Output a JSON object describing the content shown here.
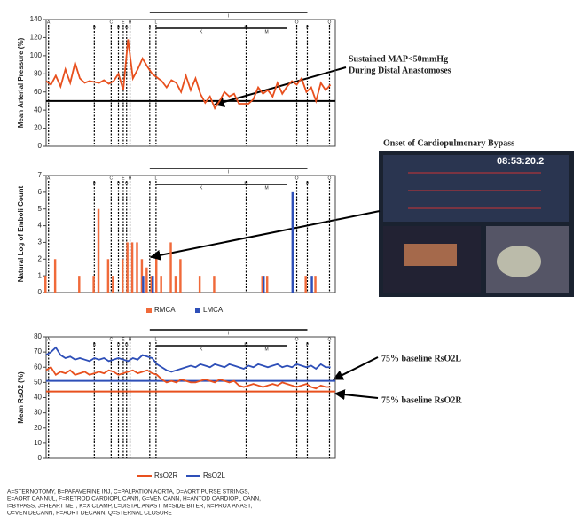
{
  "chart_data": [
    {
      "type": "line",
      "ylabel": "Mean Arterial Pressure (%)",
      "xlim": [
        0,
        60
      ],
      "ylim": [
        0,
        140
      ],
      "yticks": [
        0,
        20,
        40,
        60,
        80,
        100,
        120,
        140
      ],
      "series": [
        {
          "color": "#e8501e",
          "values": [
            72,
            68,
            78,
            66,
            85,
            70,
            92,
            75,
            70,
            72,
            71,
            70,
            73,
            69,
            72,
            80,
            62,
            118,
            75,
            85,
            97,
            88,
            80,
            76,
            72,
            65,
            73,
            70,
            60,
            78,
            62,
            75,
            58,
            48,
            55,
            42,
            50,
            60,
            55,
            58,
            47,
            47,
            47,
            52,
            65,
            58,
            62,
            55,
            70,
            58,
            66,
            72,
            68,
            75,
            60,
            65,
            50,
            70,
            62,
            68
          ]
        }
      ],
      "hlines": [
        {
          "value": 50,
          "color": "#000"
        }
      ],
      "annotation": [
        "Sustained MAP<50mmHg",
        "During Distal Anastomoses"
      ],
      "events": [
        {
          "label": "A",
          "x": 0.5
        },
        {
          "label": "B",
          "x": 10
        },
        {
          "label": "C",
          "x": 13.5
        },
        {
          "label": "D",
          "x": 15
        },
        {
          "label": "E",
          "x": 16
        },
        {
          "label": "G",
          "x": 16.7
        },
        {
          "label": "H",
          "x": 17.4
        },
        {
          "label": "J",
          "x": 21.5
        },
        {
          "label": "L",
          "x": 22.8
        },
        {
          "label": "M",
          "x": 41.5
        },
        {
          "label": "O",
          "x": 52
        },
        {
          "label": "P",
          "x": 54.2
        },
        {
          "label": "Q",
          "x": 58.8
        }
      ],
      "spans": [
        {
          "label": "I",
          "from": 21.5,
          "to": 54.2
        },
        {
          "label": "K",
          "from": 22.8,
          "to": 41.5
        },
        {
          "label": "M",
          "from": 41.5,
          "to": 50
        }
      ]
    },
    {
      "type": "bar",
      "ylabel": "Natural Log of Emboli Count",
      "xlim": [
        0,
        60
      ],
      "ylim": [
        0,
        7
      ],
      "yticks": [
        0,
        1,
        2,
        3,
        4,
        5,
        6,
        7
      ],
      "series": [
        {
          "name": "RMCA",
          "color": "#f06a3a",
          "values": [
            1,
            0,
            2,
            0,
            0,
            0,
            0,
            1,
            0,
            0,
            1,
            5,
            0,
            2,
            1,
            0,
            2,
            3,
            3,
            3,
            2,
            1.5,
            1,
            2,
            1,
            0,
            3,
            1,
            2,
            0,
            0,
            0,
            1,
            0,
            0,
            1,
            0,
            0,
            0,
            0,
            0,
            0,
            0,
            0,
            0,
            1,
            1,
            0,
            0,
            0,
            0,
            0,
            0,
            0,
            1,
            0,
            1,
            0,
            0,
            0
          ]
        },
        {
          "name": "LMCA",
          "color": "#2e4fb8",
          "values": [
            0,
            0,
            0,
            0,
            0,
            0,
            0,
            0,
            0,
            0,
            0,
            0,
            0,
            0,
            0,
            0,
            0,
            0,
            0,
            0,
            1,
            0,
            1,
            0,
            0,
            0,
            0,
            0,
            0,
            0,
            0,
            0,
            0,
            0,
            0,
            0,
            0,
            0,
            0,
            0,
            0,
            0,
            0,
            0,
            0,
            1,
            0,
            0,
            0,
            0,
            0,
            6,
            0,
            0,
            0,
            1,
            0,
            0,
            0,
            0
          ]
        }
      ],
      "inset_title": "Onset of Cardiopulmonary Bypass",
      "inset_clock": "08:53:20.2"
    },
    {
      "type": "line",
      "ylabel": "Mean RsO2 (%)",
      "xlim": [
        0,
        60
      ],
      "ylim": [
        0,
        80
      ],
      "yticks": [
        0,
        10,
        20,
        30,
        40,
        50,
        60,
        70,
        80
      ],
      "series": [
        {
          "name": "RsO2R",
          "color": "#e8501e",
          "values": [
            58,
            60,
            55,
            57,
            56,
            58,
            55,
            56,
            57,
            55,
            56,
            57,
            56,
            58,
            57,
            55,
            56,
            57,
            58,
            56,
            57,
            58,
            56,
            55,
            52,
            50,
            51,
            50,
            52,
            51,
            50,
            50,
            51,
            52,
            51,
            50,
            52,
            51,
            50,
            51,
            48,
            47,
            48,
            49,
            48,
            47,
            48,
            49,
            48,
            50,
            49,
            48,
            47,
            48,
            49,
            47,
            46,
            48,
            47,
            47
          ]
        },
        {
          "name": "RsO2L",
          "color": "#2e4fb8",
          "values": [
            68,
            70,
            73,
            68,
            66,
            67,
            65,
            66,
            65,
            64,
            66,
            65,
            66,
            64,
            65,
            66,
            65,
            64,
            66,
            65,
            68,
            67,
            66,
            62,
            60,
            58,
            57,
            58,
            59,
            60,
            61,
            60,
            62,
            61,
            60,
            62,
            61,
            60,
            62,
            61,
            60,
            59,
            61,
            60,
            62,
            61,
            60,
            61,
            62,
            60,
            61,
            60,
            62,
            61,
            60,
            61,
            59,
            62,
            60,
            60
          ]
        }
      ],
      "hlines": [
        {
          "value": 51,
          "color": "#2e4fb8"
        },
        {
          "value": 44,
          "color": "#e8501e"
        }
      ],
      "annotation": [
        "75% baseline RsO2L",
        "75% baseline RsO2R"
      ],
      "footnote": [
        "A=STERNOTOMY, B=PAPAVERINE INJ, C=PALPATION AORTA, D=AORT PURSE STRINGS,",
        "E=AORT CANNUL, F=RETROD CARDIOPL CANN, G=VEN CANN, H=ANTOD CARDIOPL CANN,",
        "I=BYPASS, J=HEART NET, K=X CLAMP, L=DISTAL ANAST, M=SIDE BITER, N=PROX ANAST,",
        "O=VEN DECANN, P=AORT DECANN, Q=STERNAL CLOSURE"
      ]
    }
  ]
}
